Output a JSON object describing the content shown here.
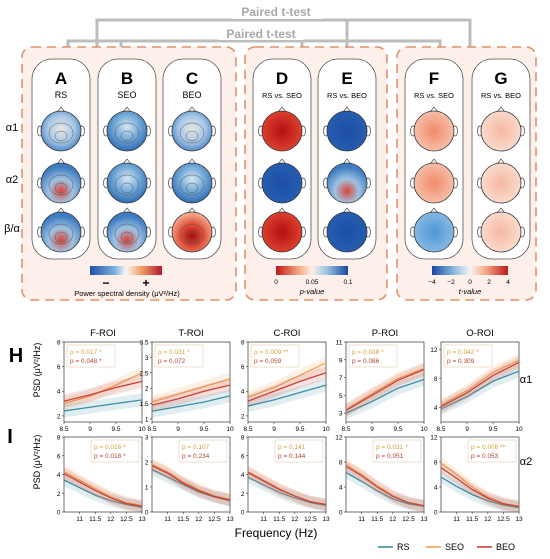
{
  "brackets": {
    "outer_label": "Paired t-test",
    "inner_label": "Paired t-test"
  },
  "panels": [
    {
      "letter": "A",
      "subtitle": "RS"
    },
    {
      "letter": "B",
      "subtitle": "SEO"
    },
    {
      "letter": "C",
      "subtitle": "BEO"
    },
    {
      "letter": "D",
      "subtitle": "RS vs. SEO"
    },
    {
      "letter": "E",
      "subtitle": "RS vs. BEO"
    },
    {
      "letter": "F",
      "subtitle": "RS vs. SEO"
    },
    {
      "letter": "G",
      "subtitle": "RS vs. BEO"
    }
  ],
  "row_labels": [
    "α1",
    "α2",
    "β/α"
  ],
  "colorbars": {
    "psd": {
      "minus": "−",
      "plus": "+",
      "label": "Power spectral density (μV²/Hz)"
    },
    "p": {
      "ticks": [
        "0",
        "0.05",
        "0.1"
      ],
      "label": "p-value"
    },
    "t": {
      "ticks": [
        "−4",
        "−2",
        "0",
        "2",
        "4"
      ],
      "label": "t-value"
    }
  },
  "colors": {
    "RS": "#3d8fa6",
    "SEO": "#f0a35e",
    "BEO": "#c9423a",
    "region_border": "#e0916a",
    "region_fill": "#fdf0ea",
    "bracket": "#bbbbbb"
  },
  "chart_data": {
    "type": "line",
    "section_labels": [
      "H",
      "I"
    ],
    "row_right_labels": [
      "α1",
      "α2"
    ],
    "ylabel": "PSD (μV²/Hz)",
    "xlabel": "Frequency (Hz)",
    "legend": [
      "RS",
      "SEO",
      "BEO"
    ],
    "legend_placement": "bottom-right",
    "rois": [
      "F-ROI",
      "T-ROI",
      "C-ROI",
      "P-ROI",
      "O-ROI"
    ],
    "alpha1": {
      "x": [
        8.5,
        9,
        9.5,
        10
      ],
      "xticks": [
        "8.5",
        "9",
        "9.5",
        "10"
      ],
      "plots": [
        {
          "yticks": [
            "2",
            "4",
            "6",
            "8"
          ],
          "ylim": [
            1.5,
            8
          ],
          "p_seo": "p = 0.017 *",
          "p_beo": "p = 0.048 *",
          "RS": [
            2.4,
            2.7,
            3.0,
            3.3
          ],
          "SEO": [
            3.0,
            3.6,
            4.5,
            5.5
          ],
          "BEO": [
            3.2,
            3.7,
            4.3,
            4.8
          ]
        },
        {
          "yticks": [
            "1",
            "1.5",
            "2",
            "2.5",
            "3",
            "3.5"
          ],
          "ylim": [
            0.9,
            3.5
          ],
          "p_seo": "p = 0.031 *",
          "p_beo": "p = 0.072",
          "RS": [
            1.25,
            1.4,
            1.55,
            1.75
          ],
          "SEO": [
            1.55,
            1.8,
            2.05,
            2.3
          ],
          "BEO": [
            1.45,
            1.65,
            1.9,
            2.1
          ]
        },
        {
          "yticks": [
            "2",
            "4",
            "6",
            "8"
          ],
          "ylim": [
            1.5,
            8
          ],
          "p_seo": "p = 0.009 **",
          "p_beo": "p = 0.059",
          "RS": [
            2.8,
            3.3,
            3.9,
            4.5
          ],
          "SEO": [
            3.5,
            4.3,
            5.3,
            6.3
          ],
          "BEO": [
            3.2,
            4.0,
            4.8,
            5.5
          ]
        },
        {
          "yticks": [
            "3",
            "5",
            "7",
            "9",
            "11"
          ],
          "ylim": [
            2,
            11
          ],
          "p_seo": "p = 0.038 *",
          "p_beo": "p = 0.086",
          "RS": [
            3.0,
            4.3,
            5.8,
            6.8
          ],
          "SEO": [
            3.4,
            5.2,
            6.9,
            8.0
          ],
          "BEO": [
            3.3,
            5.0,
            6.7,
            7.9
          ]
        },
        {
          "yticks": [
            "4",
            "8",
            "12"
          ],
          "ylim": [
            2,
            13
          ],
          "p_seo": "p = 0.042 *",
          "p_beo": "p = 0.309",
          "RS": [
            3.8,
            5.5,
            7.6,
            9.0
          ],
          "SEO": [
            4.3,
            6.3,
            8.8,
            10.5
          ],
          "BEO": [
            4.1,
            6.0,
            8.4,
            10.2
          ]
        }
      ]
    },
    "alpha2": {
      "x": [
        10.5,
        11,
        11.5,
        12,
        12.5,
        13
      ],
      "xticks": [
        "11",
        "11.5",
        "12",
        "12.5",
        "13"
      ],
      "plots": [
        {
          "yticks": [
            "0",
            "2",
            "4",
            "6",
            "8"
          ],
          "ylim": [
            0,
            8
          ],
          "p_seo": "p = 0.016 *",
          "p_beo": "p = 0.018 *",
          "RS": [
            3.4,
            2.6,
            1.8,
            1.2,
            0.8,
            0.5
          ],
          "SEO": [
            4.3,
            3.4,
            2.5,
            1.6,
            1.0,
            0.7
          ],
          "BEO": [
            4.1,
            3.2,
            2.3,
            1.5,
            0.9,
            0.6
          ]
        },
        {
          "yticks": [
            "0",
            "1",
            "2",
            "3"
          ],
          "ylim": [
            0,
            3
          ],
          "p_seo": "p = 0.107",
          "p_beo": "p = 0.234",
          "RS": [
            1.7,
            1.4,
            1.1,
            0.8,
            0.6,
            0.45
          ],
          "SEO": [
            1.9,
            1.6,
            1.2,
            0.9,
            0.65,
            0.5
          ],
          "BEO": [
            1.85,
            1.55,
            1.15,
            0.85,
            0.62,
            0.48
          ]
        },
        {
          "yticks": [
            "0",
            "2",
            "4",
            "6",
            "8"
          ],
          "ylim": [
            0,
            8
          ],
          "p_seo": "p = 0.141",
          "p_beo": "p = 0.144",
          "RS": [
            3.7,
            2.9,
            2.1,
            1.5,
            1.0,
            0.7
          ],
          "SEO": [
            4.3,
            3.4,
            2.5,
            1.7,
            1.1,
            0.8
          ],
          "BEO": [
            4.2,
            3.3,
            2.4,
            1.7,
            1.1,
            0.8
          ]
        },
        {
          "yticks": [
            "0",
            "4",
            "8",
            "12"
          ],
          "ylim": [
            0,
            12
          ],
          "p_seo": "p = 0.031 *",
          "p_beo": "p = 0.051",
          "RS": [
            6.3,
            4.9,
            3.4,
            2.1,
            1.3,
            0.9
          ],
          "SEO": [
            7.6,
            6.0,
            4.2,
            2.6,
            1.5,
            1.0
          ],
          "BEO": [
            7.3,
            5.8,
            4.0,
            2.5,
            1.5,
            1.0
          ]
        },
        {
          "yticks": [
            "0",
            "4",
            "8",
            "12"
          ],
          "ylim": [
            0,
            12
          ],
          "p_seo": "p = 0.006 **",
          "p_beo": "p = 0.053",
          "RS": [
            5.6,
            4.1,
            2.8,
            1.8,
            1.1,
            0.7
          ],
          "SEO": [
            7.8,
            6.0,
            4.0,
            2.4,
            1.4,
            0.9
          ],
          "BEO": [
            7.1,
            5.4,
            3.6,
            2.2,
            1.3,
            0.9
          ]
        }
      ]
    }
  }
}
